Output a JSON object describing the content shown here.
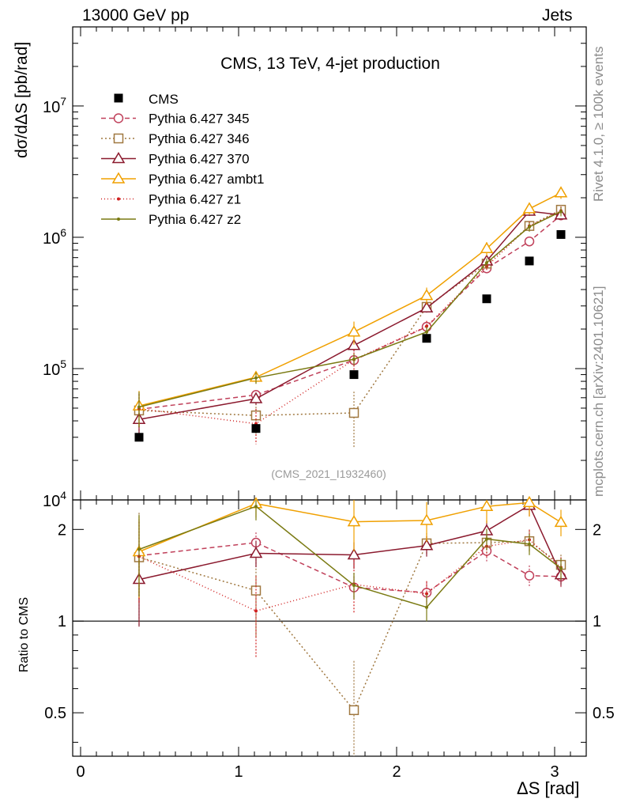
{
  "header": {
    "left": "13000 GeV pp",
    "right": "Jets"
  },
  "side_labels": {
    "top": "Rivet 4.1.0, ≥ 100k events",
    "bottom": "mcplots.cern.ch [arXiv:2401.10621]"
  },
  "chart_data": {
    "type": "line",
    "title": "CMS, 13 TeV, 4-jet production",
    "watermark": "(CMS_2021_I1932460)",
    "xlabel": "ΔS [rad]",
    "ylabel": "dσ/dΔS [pb/rad]",
    "ratio_ylabel": "Ratio to CMS",
    "x": [
      0.37,
      1.11,
      1.73,
      2.19,
      2.57,
      2.84,
      3.04
    ],
    "xlim": [
      -0.05,
      3.2
    ],
    "ylim": [
      10000,
      40000000
    ],
    "yscale": "log",
    "ratio_ylim": [
      0.36,
      2.5
    ],
    "ratio_yscale": "log",
    "x_ticks": [
      "0",
      "1",
      "2",
      "3"
    ],
    "y_ticks": [
      "10",
      "10",
      "10",
      "10"
    ],
    "y_tick_exponents": [
      "4",
      "5",
      "6",
      "7"
    ],
    "ratio_ticks": [
      "0.5",
      "1",
      "2"
    ],
    "data": {
      "name": "CMS",
      "values": [
        30000,
        35000,
        90000,
        170000,
        340000,
        660000,
        1050000
      ]
    },
    "series": [
      {
        "name": "Pythia 6.427 345",
        "color": "#c0405a",
        "dash": "6,4",
        "marker": "circle",
        "values": [
          49000,
          63000,
          116000,
          208000,
          580000,
          930000,
          1470000
        ],
        "errors": [
          0.3,
          0.08,
          0.08,
          0.08,
          0.08,
          0.08,
          0.08
        ],
        "ratio": [
          1.64,
          1.81,
          1.29,
          1.24,
          1.7,
          1.41,
          1.4
        ]
      },
      {
        "name": "Pythia 6.427 346",
        "color": "#a07840",
        "dash": "2,3",
        "marker": "square",
        "values": [
          48000,
          44000,
          46000,
          295000,
          630000,
          1220000,
          1620000
        ],
        "errors": [
          0.4,
          0.3,
          0.45,
          0.08,
          0.08,
          0.08,
          0.08
        ],
        "ratio": [
          1.62,
          1.26,
          0.51,
          1.8,
          1.81,
          1.83,
          1.53
        ]
      },
      {
        "name": "Pythia 6.427 370",
        "color": "#8b1a2e",
        "dash": "",
        "marker": "triangle",
        "values": [
          41000,
          59000,
          150000,
          290000,
          660000,
          1580000,
          1480000
        ],
        "errors": [
          0.3,
          0.1,
          0.1,
          0.08,
          0.08,
          0.08,
          0.08
        ],
        "ratio": [
          1.37,
          1.67,
          1.65,
          1.77,
          1.98,
          2.4,
          1.42
        ]
      },
      {
        "name": "Pythia 6.427 ambt1",
        "color": "#f0a000",
        "dash": "",
        "marker": "triangle",
        "values": [
          52000,
          86000,
          190000,
          360000,
          820000,
          1650000,
          2180000
        ],
        "errors": [
          0.3,
          0.1,
          0.2,
          0.15,
          0.12,
          0.1,
          0.1
        ],
        "ratio": [
          1.69,
          2.43,
          2.12,
          2.14,
          2.38,
          2.45,
          2.11
        ]
      },
      {
        "name": "Pythia 6.427 z1",
        "color": "#d02020",
        "dash": "1,3",
        "marker": "dot",
        "values": [
          49500,
          38000,
          117000,
          210000,
          600000,
          1220000,
          1590000
        ],
        "errors": [
          0.3,
          0.3,
          0.2,
          0.1,
          0.08,
          0.08,
          0.08
        ],
        "ratio": [
          1.63,
          1.08,
          1.32,
          1.23,
          1.76,
          1.85,
          1.5
        ]
      },
      {
        "name": "Pythia 6.427 z2",
        "color": "#7a7a12",
        "dash": "",
        "marker": "dot",
        "values": [
          51000,
          85000,
          118000,
          190000,
          640000,
          1200000,
          1570000
        ],
        "errors": [
          0.3,
          0.1,
          0.1,
          0.1,
          0.08,
          0.08,
          0.08
        ],
        "ratio": [
          1.72,
          2.38,
          1.31,
          1.11,
          1.86,
          1.79,
          1.49
        ]
      }
    ]
  }
}
